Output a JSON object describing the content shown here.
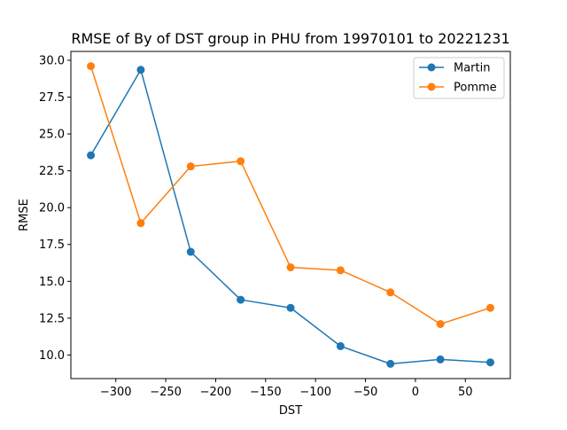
{
  "chart_data": {
    "type": "line",
    "title": "RMSE of By of DST group in PHU from 19970101 to 20221231",
    "xlabel": "DST",
    "ylabel": "RMSE",
    "xlim": [
      -345,
      95
    ],
    "ylim": [
      8.4,
      30.6
    ],
    "xticks": [
      -300,
      -250,
      -200,
      -150,
      -100,
      -50,
      0,
      50
    ],
    "xtick_labels": [
      "−300",
      "−250",
      "−200",
      "−150",
      "−100",
      "−50",
      "0",
      "50"
    ],
    "yticks": [
      10.0,
      12.5,
      15.0,
      17.5,
      20.0,
      22.5,
      25.0,
      27.5,
      30.0
    ],
    "ytick_labels": [
      "10.0",
      "12.5",
      "15.0",
      "17.5",
      "20.0",
      "22.5",
      "25.0",
      "27.5",
      "30.0"
    ],
    "x": [
      -325,
      -275,
      -225,
      -175,
      -125,
      -75,
      -25,
      25,
      75
    ],
    "series": [
      {
        "name": "Martin",
        "color": "#1f77b4",
        "marker": "circle",
        "values": [
          23.55,
          29.35,
          17.0,
          13.75,
          13.2,
          10.6,
          9.4,
          9.7,
          9.5
        ]
      },
      {
        "name": "Pomme",
        "color": "#ff7f0e",
        "marker": "circle",
        "values": [
          29.6,
          18.95,
          22.8,
          23.15,
          15.95,
          15.75,
          14.25,
          12.1,
          13.2
        ]
      }
    ],
    "grid": false,
    "legend_position": "top-right"
  }
}
